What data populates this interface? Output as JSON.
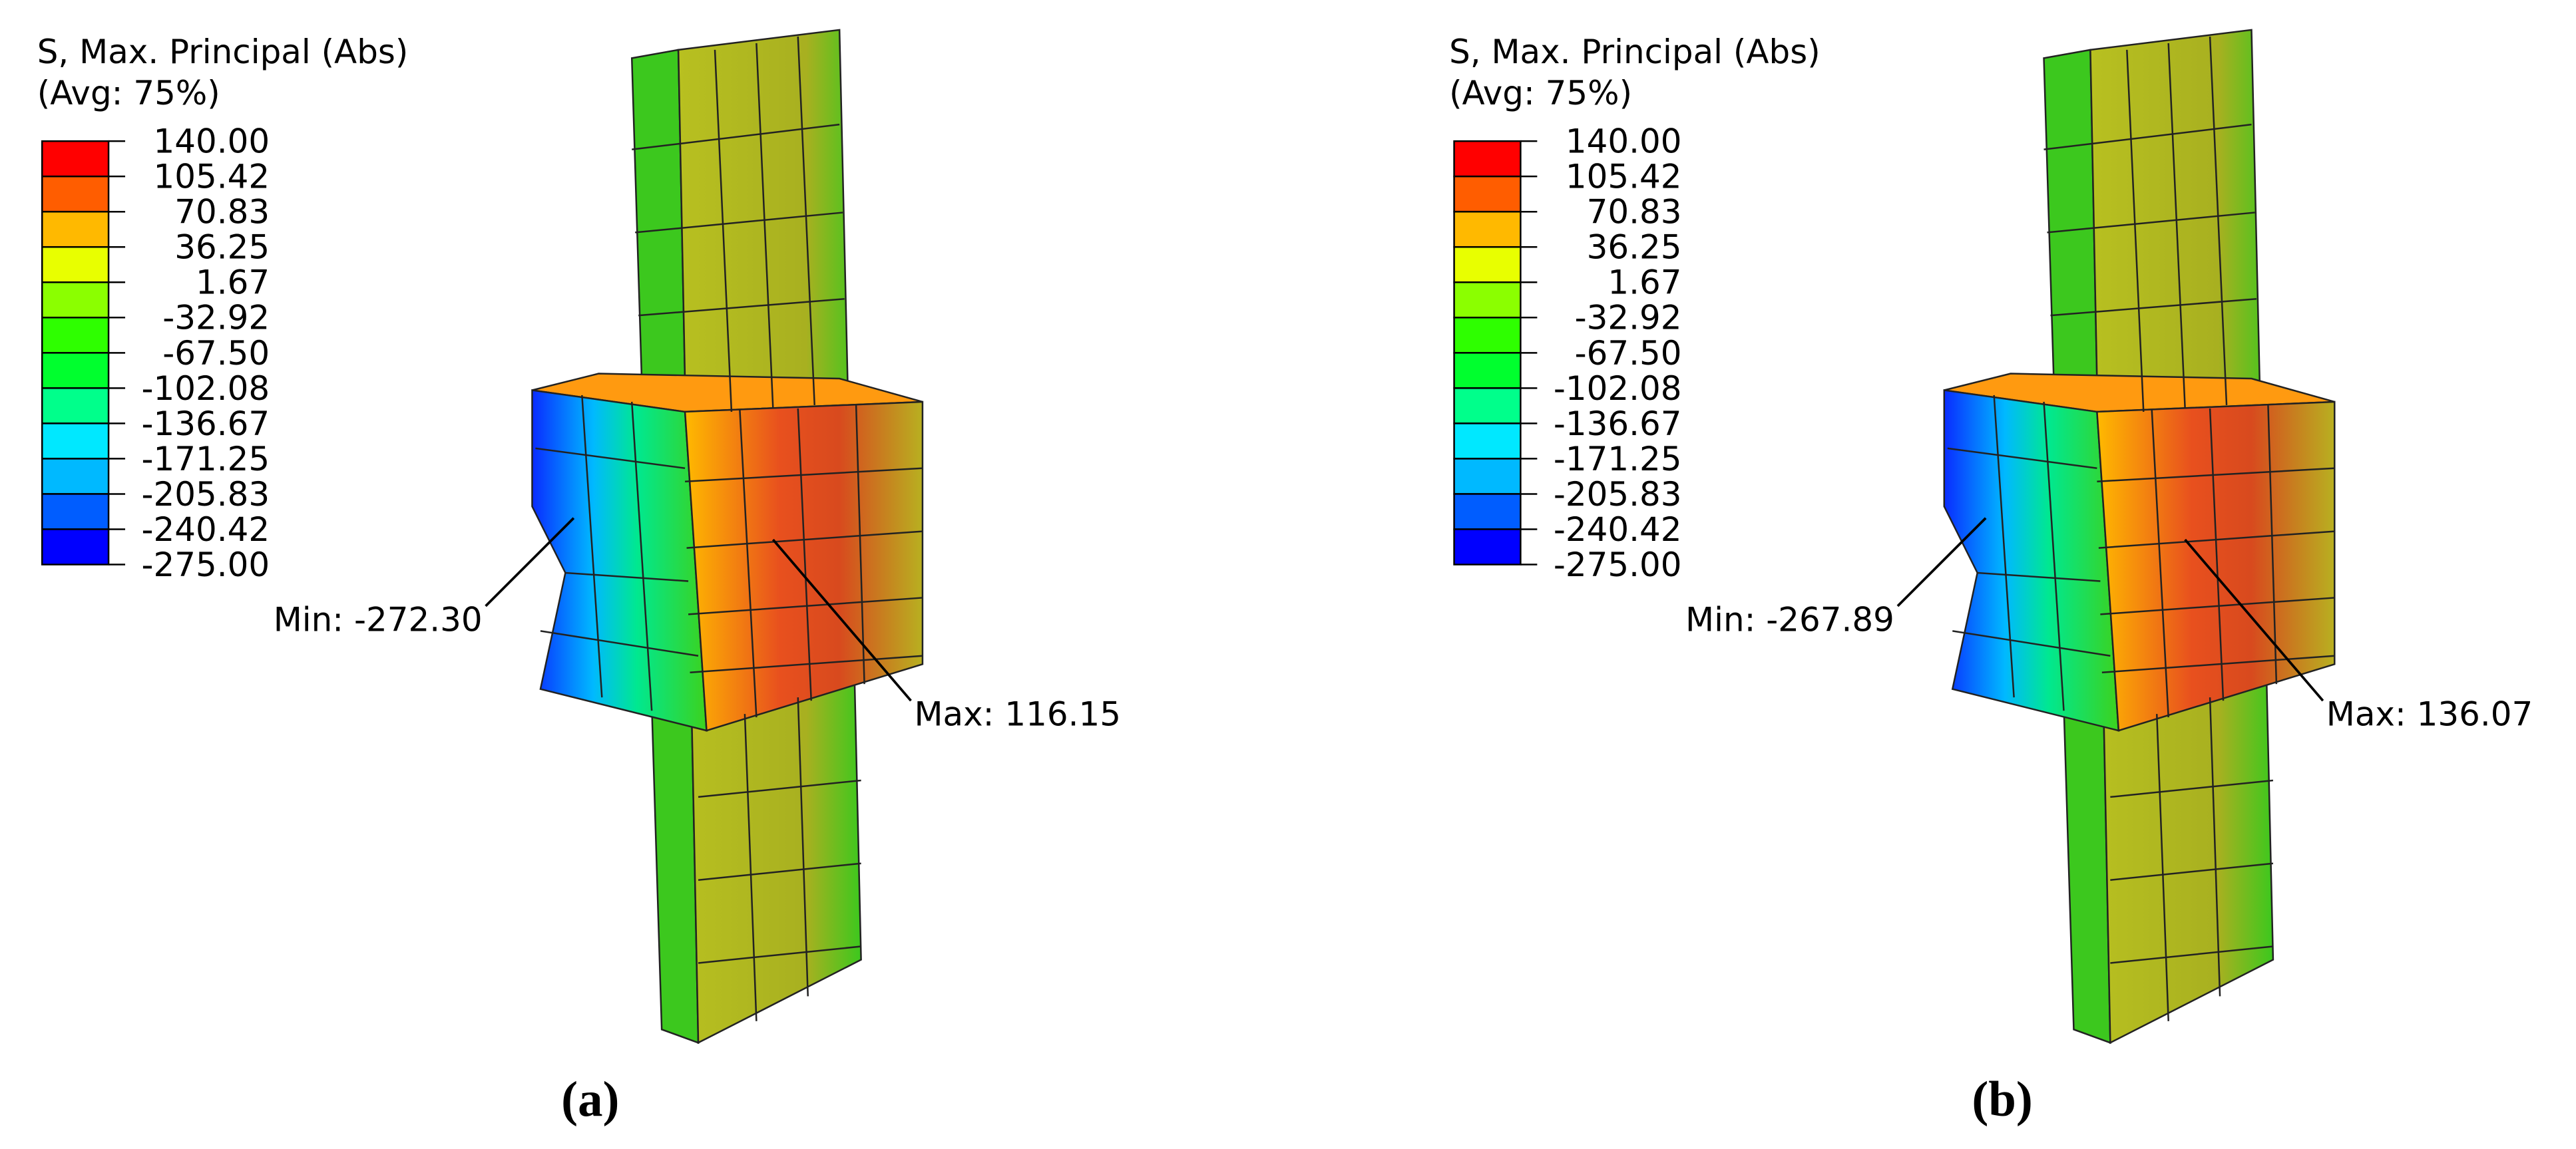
{
  "panels": [
    {
      "legend": {
        "title": "S, Max. Principal (Abs)",
        "subtitle": "(Avg: 75%)",
        "labels": [
          "140.00",
          "105.42",
          "70.83",
          "36.25",
          "1.67",
          "-32.92",
          "-67.50",
          "-102.08",
          "-136.67",
          "-171.25",
          "-205.83",
          "-240.42",
          "-275.00"
        ],
        "colors": [
          "#ff0000",
          "#ff5d00",
          "#ffb900",
          "#e8ff00",
          "#8bff00",
          "#2eff00",
          "#00ff2e",
          "#00ff8b",
          "#00e8ff",
          "#00b9ff",
          "#005dff",
          "#0000ff"
        ]
      },
      "min_label": "Min: -272.30",
      "max_label": "Max: 116.15",
      "caption": "(a)"
    },
    {
      "legend": {
        "title": "S, Max. Principal (Abs)",
        "subtitle": "(Avg: 75%)",
        "labels": [
          "140.00",
          "105.42",
          "70.83",
          "36.25",
          "1.67",
          "-32.92",
          "-67.50",
          "-102.08",
          "-136.67",
          "-171.25",
          "-205.83",
          "-240.42",
          "-275.00"
        ],
        "colors": [
          "#ff0000",
          "#ff5d00",
          "#ffb900",
          "#e8ff00",
          "#8bff00",
          "#2eff00",
          "#00ff2e",
          "#00ff8b",
          "#00e8ff",
          "#00b9ff",
          "#005dff",
          "#0000ff"
        ]
      },
      "min_label": "Min: -267.89",
      "max_label": "Max: 136.07",
      "caption": "(b)"
    }
  ]
}
